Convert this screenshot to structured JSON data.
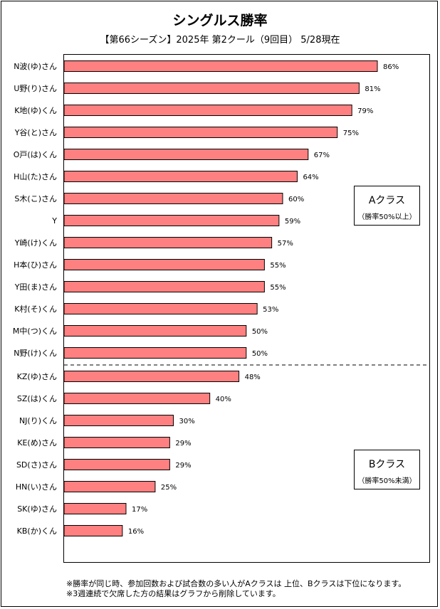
{
  "title": "シングルス勝率",
  "subtitle": "【第66シーズン】2025年 第2クール（9回目） 5/28現在",
  "class_a": {
    "label": "Aクラス",
    "condition": "（勝率50%以上）"
  },
  "class_b": {
    "label": "Bクラス",
    "condition": "（勝率50%未満）"
  },
  "notes": [
    "※勝率が同じ時、参加回数および試合数の多い人がAクラスは 上位、Bクラスは下位になります。",
    "※3週連続で欠席した方の結果はグラフから削除しています。"
  ],
  "colors": {
    "bar": "#ff8080",
    "bar_stroke": "#000000"
  },
  "chart_data": {
    "type": "bar",
    "orientation": "horizontal",
    "title": "シングルス勝率",
    "categories": [
      "N波(ゆ)さん",
      "U野(り)さん",
      "K地(ゆ)くん",
      "Y谷(と)さん",
      "O戸(は)くん",
      "H山(た)さん",
      "S木(こ)さん",
      "Y",
      "Y崎(け)くん",
      "H本(ひ)さん",
      "Y田(ま)さん",
      "K村(そ)くん",
      "M中(つ)くん",
      "N野(け)くん",
      "KZ(ゆ)さん",
      "SZ(は)くん",
      "NJ(り)くん",
      "KE(め)さん",
      "SD(さ)さん",
      "HN(い)さん",
      "SK(ゆ)さん",
      "KB(か)くん"
    ],
    "values": [
      86,
      81,
      79,
      75,
      67,
      64,
      60,
      59,
      57,
      55,
      55,
      53,
      50,
      50,
      48,
      40,
      30,
      29,
      29,
      25,
      17,
      16
    ],
    "value_labels": [
      "86%",
      "81%",
      "79%",
      "75%",
      "67%",
      "64%",
      "60%",
      "59%",
      "57%",
      "55%",
      "55%",
      "53%",
      "50%",
      "50%",
      "48%",
      "40%",
      "30%",
      "29%",
      "29%",
      "25%",
      "17%",
      "16%"
    ],
    "groups": [
      {
        "name": "Aクラス",
        "count": 14
      },
      {
        "name": "Bクラス",
        "count": 8
      }
    ],
    "xlim": [
      0,
      100
    ],
    "grid": false,
    "legend": "none"
  }
}
